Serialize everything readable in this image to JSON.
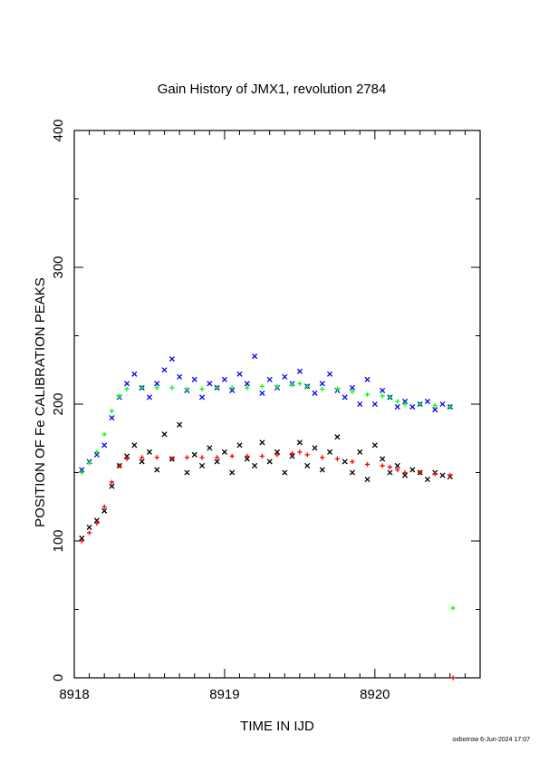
{
  "chart_data": {
    "type": "scatter",
    "title": "Gain History of JMX1, revolution 2784",
    "xlabel": "TIME IN IJD",
    "ylabel": "POSITION OF Fe CALIBRATION PEAKS",
    "xlim": [
      8918,
      8920.7
    ],
    "ylim": [
      0,
      400
    ],
    "x_ticks": [
      "8918",
      "8919",
      "8920"
    ],
    "y_ticks": [
      "0",
      "100",
      "200",
      "300",
      "400"
    ],
    "grid": false,
    "legend": "none",
    "series": [
      {
        "color": "#0000ff",
        "marker": "x",
        "points": [
          [
            8918.05,
            152
          ],
          [
            8918.1,
            158
          ],
          [
            8918.15,
            163
          ],
          [
            8918.2,
            170
          ],
          [
            8918.25,
            190
          ],
          [
            8918.3,
            205
          ],
          [
            8918.35,
            215
          ],
          [
            8918.4,
            222
          ],
          [
            8918.45,
            212
          ],
          [
            8918.5,
            205
          ],
          [
            8918.55,
            215
          ],
          [
            8918.6,
            225
          ],
          [
            8918.65,
            233
          ],
          [
            8918.7,
            220
          ],
          [
            8918.75,
            210
          ],
          [
            8918.8,
            218
          ],
          [
            8918.85,
            205
          ],
          [
            8918.9,
            215
          ],
          [
            8918.95,
            212
          ],
          [
            8919.0,
            218
          ],
          [
            8919.05,
            210
          ],
          [
            8919.1,
            222
          ],
          [
            8919.15,
            215
          ],
          [
            8919.2,
            235
          ],
          [
            8919.25,
            208
          ],
          [
            8919.3,
            218
          ],
          [
            8919.35,
            212
          ],
          [
            8919.4,
            220
          ],
          [
            8919.45,
            215
          ],
          [
            8919.5,
            224
          ],
          [
            8919.55,
            213
          ],
          [
            8919.6,
            208
          ],
          [
            8919.65,
            215
          ],
          [
            8919.7,
            222
          ],
          [
            8919.75,
            210
          ],
          [
            8919.8,
            205
          ],
          [
            8919.85,
            212
          ],
          [
            8919.9,
            200
          ],
          [
            8919.95,
            218
          ],
          [
            8920.0,
            200
          ],
          [
            8920.05,
            210
          ],
          [
            8920.1,
            205
          ],
          [
            8920.15,
            198
          ],
          [
            8920.2,
            202
          ],
          [
            8920.25,
            198
          ],
          [
            8920.3,
            200
          ],
          [
            8920.35,
            202
          ],
          [
            8920.4,
            196
          ],
          [
            8920.45,
            200
          ],
          [
            8920.5,
            198
          ]
        ]
      },
      {
        "color": "#00ff00",
        "marker": "+",
        "points": [
          [
            8918.05,
            150
          ],
          [
            8918.1,
            157
          ],
          [
            8918.15,
            165
          ],
          [
            8918.2,
            178
          ],
          [
            8918.25,
            195
          ],
          [
            8918.3,
            206
          ],
          [
            8918.35,
            211
          ],
          [
            8918.45,
            212
          ],
          [
            8918.55,
            212
          ],
          [
            8918.65,
            212
          ],
          [
            8918.75,
            211
          ],
          [
            8918.85,
            211
          ],
          [
            8918.95,
            212
          ],
          [
            8919.05,
            212
          ],
          [
            8919.15,
            212
          ],
          [
            8919.25,
            213
          ],
          [
            8919.35,
            213
          ],
          [
            8919.45,
            214
          ],
          [
            8919.5,
            215
          ],
          [
            8919.55,
            213
          ],
          [
            8919.65,
            211
          ],
          [
            8919.75,
            211
          ],
          [
            8919.85,
            209
          ],
          [
            8919.95,
            207
          ],
          [
            8920.05,
            206
          ],
          [
            8920.1,
            205
          ],
          [
            8920.15,
            202
          ],
          [
            8920.2,
            200
          ],
          [
            8920.3,
            200
          ],
          [
            8920.4,
            199
          ],
          [
            8920.5,
            198
          ],
          [
            8920.52,
            51
          ]
        ]
      },
      {
        "color": "#000000",
        "marker": "x",
        "points": [
          [
            8918.05,
            102
          ],
          [
            8918.1,
            110
          ],
          [
            8918.15,
            115
          ],
          [
            8918.2,
            122
          ],
          [
            8918.25,
            140
          ],
          [
            8918.3,
            155
          ],
          [
            8918.35,
            162
          ],
          [
            8918.4,
            170
          ],
          [
            8918.45,
            158
          ],
          [
            8918.5,
            165
          ],
          [
            8918.55,
            152
          ],
          [
            8918.6,
            178
          ],
          [
            8918.65,
            160
          ],
          [
            8918.7,
            185
          ],
          [
            8918.75,
            150
          ],
          [
            8918.8,
            163
          ],
          [
            8918.85,
            155
          ],
          [
            8918.9,
            168
          ],
          [
            8918.95,
            158
          ],
          [
            8919.0,
            165
          ],
          [
            8919.05,
            150
          ],
          [
            8919.1,
            170
          ],
          [
            8919.15,
            160
          ],
          [
            8919.2,
            155
          ],
          [
            8919.25,
            172
          ],
          [
            8919.3,
            158
          ],
          [
            8919.35,
            165
          ],
          [
            8919.4,
            150
          ],
          [
            8919.45,
            162
          ],
          [
            8919.5,
            172
          ],
          [
            8919.55,
            155
          ],
          [
            8919.6,
            168
          ],
          [
            8919.65,
            152
          ],
          [
            8919.7,
            165
          ],
          [
            8919.75,
            176
          ],
          [
            8919.8,
            158
          ],
          [
            8919.85,
            150
          ],
          [
            8919.9,
            165
          ],
          [
            8919.95,
            145
          ],
          [
            8920.0,
            170
          ],
          [
            8920.05,
            160
          ],
          [
            8920.1,
            150
          ],
          [
            8920.15,
            155
          ],
          [
            8920.2,
            148
          ],
          [
            8920.25,
            152
          ],
          [
            8920.3,
            150
          ],
          [
            8920.35,
            145
          ],
          [
            8920.4,
            150
          ],
          [
            8920.45,
            148
          ],
          [
            8920.5,
            147
          ]
        ]
      },
      {
        "color": "#ff0000",
        "marker": "+",
        "points": [
          [
            8918.05,
            100
          ],
          [
            8918.1,
            106
          ],
          [
            8918.15,
            113
          ],
          [
            8918.2,
            125
          ],
          [
            8918.25,
            143
          ],
          [
            8918.3,
            155
          ],
          [
            8918.35,
            160
          ],
          [
            8918.45,
            161
          ],
          [
            8918.55,
            161
          ],
          [
            8918.65,
            160
          ],
          [
            8918.75,
            161
          ],
          [
            8918.85,
            161
          ],
          [
            8918.95,
            161
          ],
          [
            8919.05,
            162
          ],
          [
            8919.15,
            162
          ],
          [
            8919.25,
            162
          ],
          [
            8919.35,
            163
          ],
          [
            8919.45,
            164
          ],
          [
            8919.5,
            165
          ],
          [
            8919.55,
            163
          ],
          [
            8919.65,
            161
          ],
          [
            8919.75,
            160
          ],
          [
            8919.85,
            158
          ],
          [
            8919.95,
            156
          ],
          [
            8920.05,
            155
          ],
          [
            8920.1,
            154
          ],
          [
            8920.15,
            152
          ],
          [
            8920.2,
            150
          ],
          [
            8920.3,
            150
          ],
          [
            8920.4,
            149
          ],
          [
            8920.5,
            148
          ],
          [
            8920.52,
            0
          ]
        ]
      }
    ]
  },
  "footer": {
    "credit": "oxborrow  6-Jun-2024 17:07"
  }
}
